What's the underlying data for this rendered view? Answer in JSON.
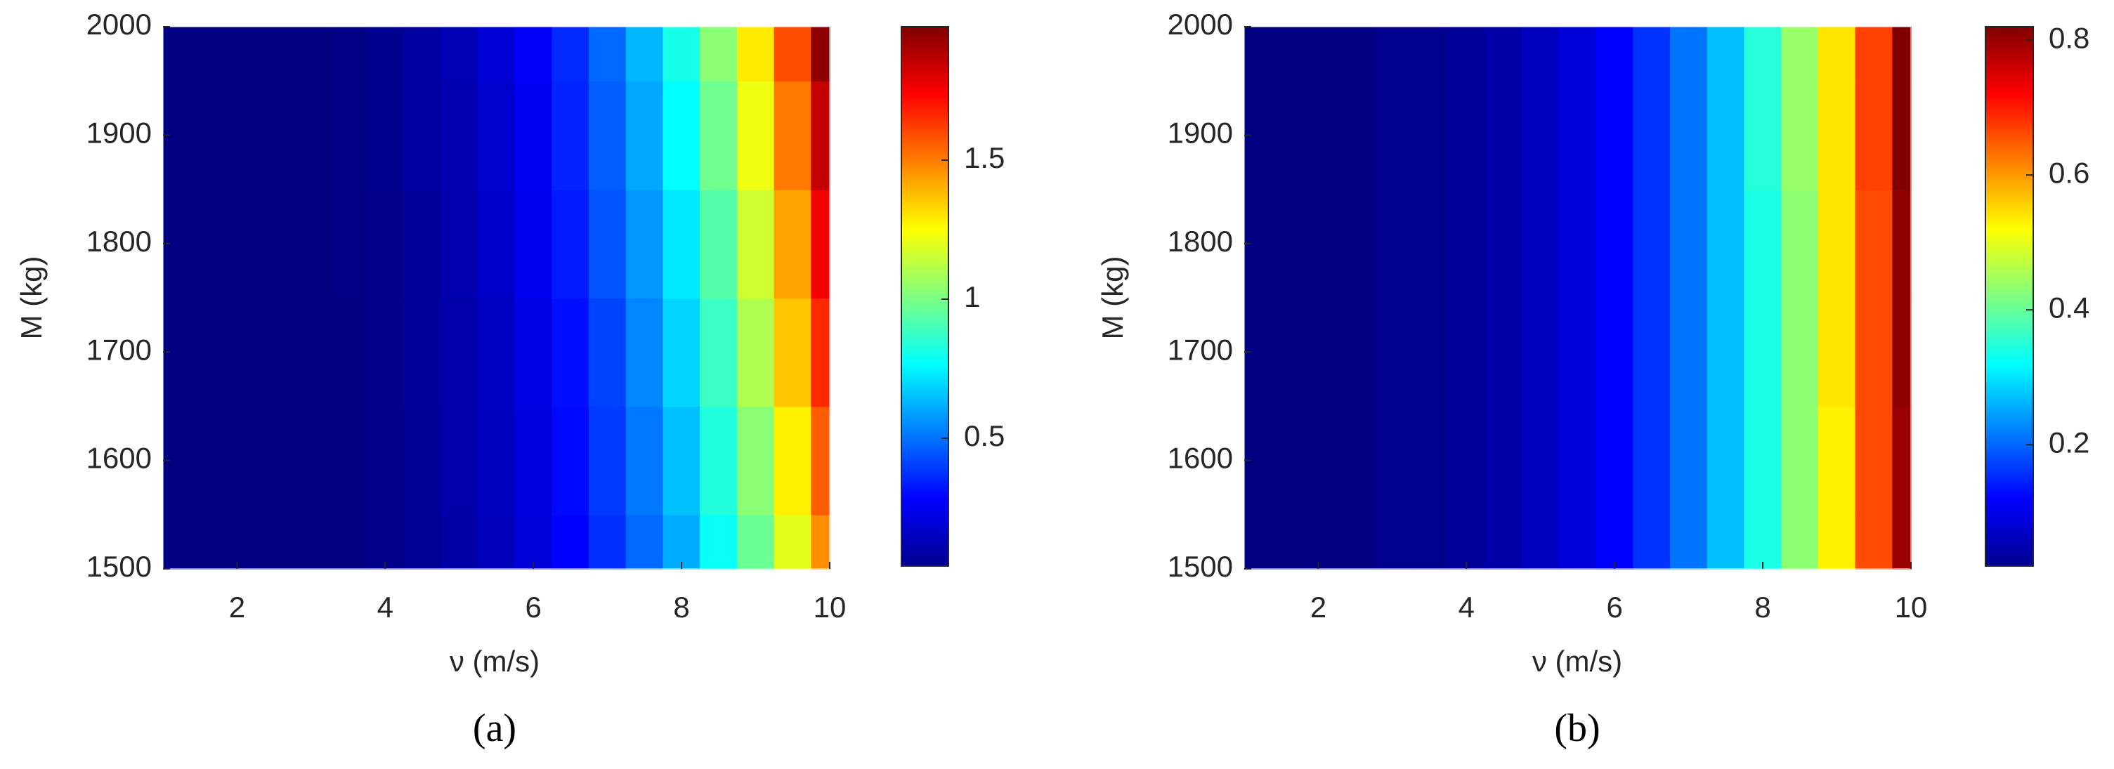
{
  "chart_data": [
    {
      "type": "heatmap",
      "label": "(a)",
      "xlabel": "ν (m/s)",
      "ylabel": "M (kg)",
      "x": [
        1,
        1.5,
        2,
        2.5,
        3,
        3.5,
        4,
        4.5,
        5,
        5.5,
        6,
        6.5,
        7,
        7.5,
        8,
        8.5,
        9,
        9.5,
        10
      ],
      "y": [
        1500,
        1600,
        1700,
        1800,
        1900,
        2000
      ],
      "z": [
        [
          0.02,
          0.02,
          0.02,
          0.03,
          0.03,
          0.04,
          0.06,
          0.08,
          0.11,
          0.15,
          0.21,
          0.28,
          0.37,
          0.48,
          0.61,
          0.78,
          0.97,
          1.2,
          1.47
        ],
        [
          0.02,
          0.02,
          0.02,
          0.03,
          0.03,
          0.04,
          0.06,
          0.08,
          0.12,
          0.16,
          0.22,
          0.3,
          0.39,
          0.51,
          0.65,
          0.83,
          1.03,
          1.28,
          1.56
        ],
        [
          0.02,
          0.02,
          0.02,
          0.03,
          0.03,
          0.04,
          0.06,
          0.09,
          0.12,
          0.17,
          0.23,
          0.31,
          0.41,
          0.54,
          0.69,
          0.88,
          1.1,
          1.36,
          1.66
        ],
        [
          0.02,
          0.02,
          0.02,
          0.03,
          0.03,
          0.05,
          0.06,
          0.09,
          0.13,
          0.18,
          0.25,
          0.33,
          0.44,
          0.57,
          0.73,
          0.93,
          1.16,
          1.43,
          1.76
        ],
        [
          0.02,
          0.02,
          0.02,
          0.03,
          0.03,
          0.05,
          0.07,
          0.1,
          0.13,
          0.19,
          0.26,
          0.35,
          0.46,
          0.6,
          0.77,
          0.98,
          1.22,
          1.51,
          1.85
        ],
        [
          0.02,
          0.02,
          0.02,
          0.03,
          0.04,
          0.05,
          0.07,
          0.1,
          0.14,
          0.2,
          0.27,
          0.36,
          0.48,
          0.63,
          0.81,
          1.03,
          1.29,
          1.59,
          1.95
        ]
      ],
      "xlim": [
        1,
        10
      ],
      "ylim": [
        1500,
        2000
      ],
      "xticks": [
        2,
        4,
        6,
        8,
        10
      ],
      "yticks": [
        1500,
        1600,
        1700,
        1800,
        1900,
        2000
      ],
      "colormap": "jet",
      "zlim": [
        0.04,
        1.98
      ],
      "colorbar_ticks": [
        0.5,
        1,
        1.5
      ]
    },
    {
      "type": "heatmap",
      "label": "(b)",
      "xlabel": "ν (m/s)",
      "ylabel": "M (kg)",
      "x": [
        1,
        1.5,
        2,
        2.5,
        3,
        3.5,
        4,
        4.5,
        5,
        5.5,
        6,
        6.5,
        7,
        7.5,
        8,
        8.5,
        9,
        9.5,
        10
      ],
      "y": [
        1500,
        1600,
        1700,
        1800,
        1900,
        2000
      ],
      "z": [
        [
          0.02,
          0.02,
          0.02,
          0.02,
          0.03,
          0.03,
          0.04,
          0.05,
          0.07,
          0.09,
          0.12,
          0.16,
          0.21,
          0.27,
          0.34,
          0.43,
          0.53,
          0.66,
          0.8
        ],
        [
          0.02,
          0.02,
          0.02,
          0.02,
          0.03,
          0.03,
          0.04,
          0.05,
          0.07,
          0.09,
          0.12,
          0.16,
          0.21,
          0.27,
          0.34,
          0.43,
          0.53,
          0.66,
          0.8
        ],
        [
          0.02,
          0.02,
          0.02,
          0.02,
          0.03,
          0.03,
          0.04,
          0.05,
          0.07,
          0.09,
          0.12,
          0.16,
          0.21,
          0.27,
          0.34,
          0.43,
          0.54,
          0.66,
          0.81
        ],
        [
          0.02,
          0.02,
          0.02,
          0.02,
          0.03,
          0.03,
          0.04,
          0.05,
          0.07,
          0.09,
          0.12,
          0.16,
          0.21,
          0.27,
          0.34,
          0.43,
          0.54,
          0.66,
          0.81
        ],
        [
          0.02,
          0.02,
          0.02,
          0.02,
          0.03,
          0.03,
          0.04,
          0.05,
          0.07,
          0.09,
          0.12,
          0.16,
          0.21,
          0.27,
          0.35,
          0.44,
          0.54,
          0.67,
          0.82
        ],
        [
          0.02,
          0.02,
          0.02,
          0.02,
          0.03,
          0.03,
          0.04,
          0.05,
          0.07,
          0.09,
          0.12,
          0.16,
          0.21,
          0.27,
          0.35,
          0.44,
          0.54,
          0.67,
          0.82
        ]
      ],
      "xlim": [
        1,
        10
      ],
      "ylim": [
        1500,
        2000
      ],
      "xticks": [
        2,
        4,
        6,
        8,
        10
      ],
      "yticks": [
        1500,
        1600,
        1700,
        1800,
        1900,
        2000
      ],
      "colormap": "jet",
      "zlim": [
        0.02,
        0.82
      ],
      "colorbar_ticks": [
        0.2,
        0.4,
        0.6,
        0.8
      ]
    }
  ]
}
